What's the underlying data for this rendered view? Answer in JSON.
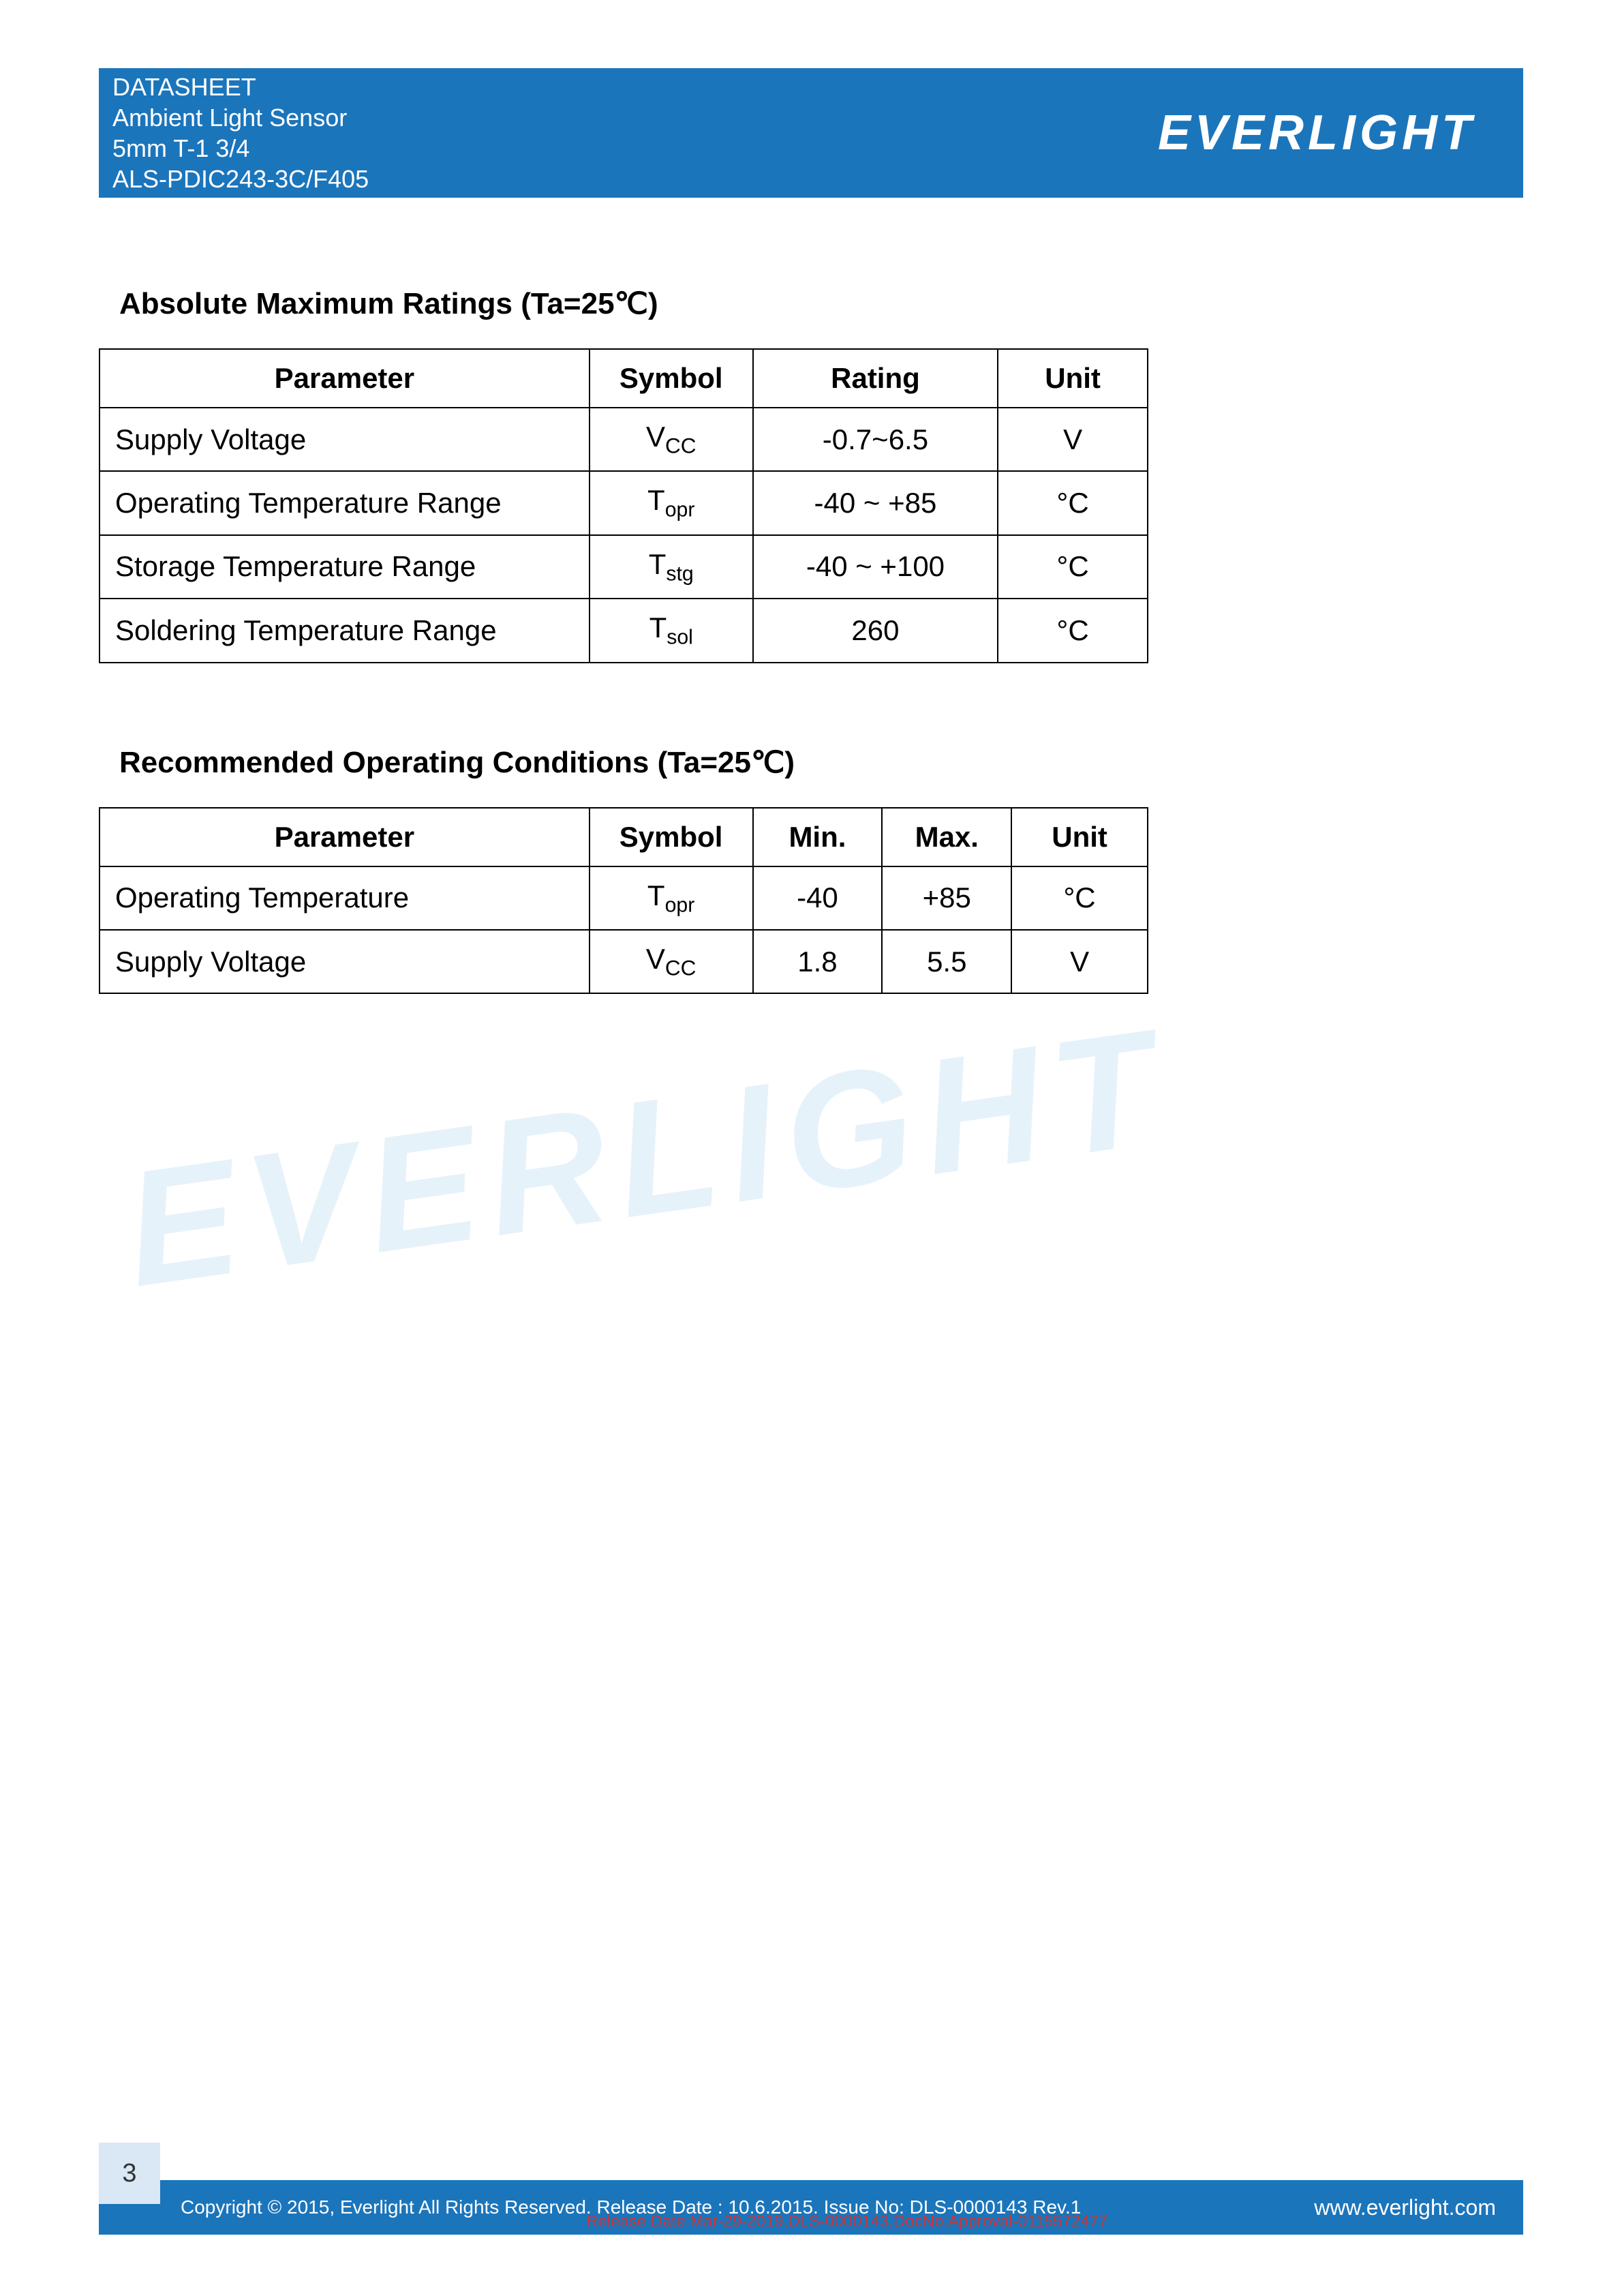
{
  "header": {
    "line1": "DATASHEET",
    "line2": "Ambient Light Sensor",
    "line3": "5mm T-1 3/4",
    "line4": "ALS-PDIC243-3C/F405",
    "brand": "EVERLIGHT"
  },
  "section1": {
    "title": "Absolute Maximum Ratings (Ta=25℃)",
    "columns": [
      "Parameter",
      "Symbol",
      "Rating",
      "Unit"
    ],
    "col_widths": [
      "720px",
      "240px",
      "360px",
      "220px"
    ],
    "rows": [
      {
        "param": "Supply Voltage",
        "symbol_main": "V",
        "symbol_sub": "CC",
        "symbol_sub_style": "small-caps",
        "rating": "-0.7~6.5",
        "unit": "V"
      },
      {
        "param": "Operating Temperature Range",
        "symbol_main": "T",
        "symbol_sub": "opr",
        "rating": "-40 ~ +85",
        "unit": "°C"
      },
      {
        "param": "Storage Temperature Range",
        "symbol_main": "T",
        "symbol_sub": "stg",
        "rating": "-40 ~ +100",
        "unit": "°C"
      },
      {
        "param": "Soldering Temperature Range",
        "symbol_main": "T",
        "symbol_sub": "sol",
        "rating": "260",
        "unit": "°C"
      }
    ]
  },
  "section2": {
    "title": "Recommended Operating Conditions (Ta=25℃)",
    "columns": [
      "Parameter",
      "Symbol",
      "Min.",
      "Max.",
      "Unit"
    ],
    "col_widths": [
      "720px",
      "240px",
      "190px",
      "190px",
      "200px"
    ],
    "rows": [
      {
        "param": "Operating Temperature",
        "symbol_main": "T",
        "symbol_sub": "opr",
        "min": "-40",
        "max": "+85",
        "unit": "°C"
      },
      {
        "param": "Supply Voltage",
        "symbol_main": "V",
        "symbol_sub": "CC",
        "symbol_sub_style": "small-caps",
        "min": "1.8",
        "max": "5.5",
        "unit": "V"
      }
    ]
  },
  "watermark": "EVERLIGHT",
  "footer": {
    "page": "3",
    "copyright": "Copyright © 2015, Everlight All Rights Reserved. Release Date : 10.6.2015. Issue No: DLS-0000143     Rev.1",
    "url": "www.everlight.com",
    "red_overlay": "Release Date:Mar-29-2019,DLS-0000143,DocNo:Approval-0115572477"
  },
  "colors": {
    "header_bg": "#1b75bb",
    "text": "#000000",
    "watermark": "#e6f2fa",
    "page_box": "#d9e8f4"
  }
}
